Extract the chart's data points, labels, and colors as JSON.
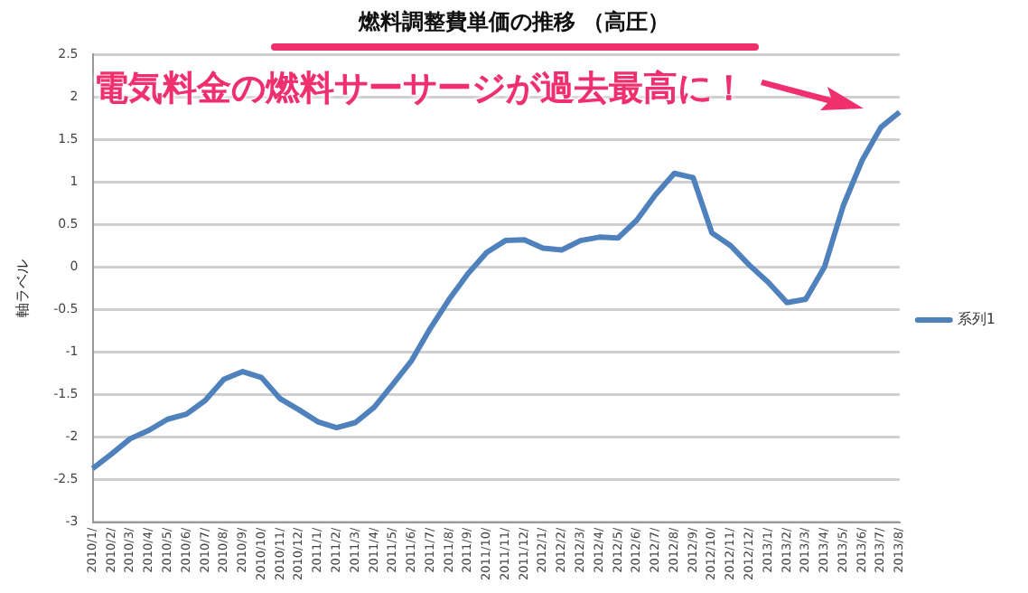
{
  "chart_data": {
    "type": "line",
    "title": "燃料調整費単価の推移 （高圧）",
    "ylabel": "軸ラベル",
    "annotations": [
      "電気料金の燃料サーサージが過去最高に！"
    ],
    "categories": [
      "2010/1/",
      "2010/2/",
      "2010/3/",
      "2010/4/",
      "2010/5/",
      "2010/6/",
      "2010/7/",
      "2010/8/",
      "2010/9/",
      "2010/10/",
      "2010/11/",
      "2010/12/",
      "2011/1/",
      "2011/2/",
      "2011/3/",
      "2011/4/",
      "2011/5/",
      "2011/6/",
      "2011/7/",
      "2011/8/",
      "2011/9/",
      "2011/10/",
      "2011/11/",
      "2011/12/",
      "2012/1/",
      "2012/2/",
      "2012/3/",
      "2012/4/",
      "2012/5/",
      "2012/6/",
      "2012/7/",
      "2012/8/",
      "2012/9/",
      "2012/10/",
      "2012/11/",
      "2012/12/",
      "2013/1/",
      "2013/2/",
      "2013/3/",
      "2013/4/",
      "2013/5/",
      "2013/6/",
      "2013/7/",
      "2013/8/"
    ],
    "series": [
      {
        "name": "系列1",
        "color": "#4f81bd",
        "values": [
          -2.37,
          -2.2,
          -2.02,
          -1.92,
          -1.79,
          -1.73,
          -1.57,
          -1.32,
          -1.23,
          -1.3,
          -1.55,
          -1.68,
          -1.82,
          -1.89,
          -1.83,
          -1.65,
          -1.38,
          -1.1,
          -0.72,
          -0.38,
          -0.08,
          0.17,
          0.31,
          0.32,
          0.22,
          0.2,
          0.31,
          0.35,
          0.34,
          0.55,
          0.85,
          1.1,
          1.05,
          0.4,
          0.25,
          0.02,
          -0.18,
          -0.42,
          -0.38,
          0.0,
          0.72,
          1.25,
          1.64,
          1.82
        ]
      }
    ],
    "ylim": [
      -3,
      2.5
    ],
    "yticks": [
      -3,
      -2.5,
      -2,
      -1.5,
      -1,
      -0.5,
      0,
      0.5,
      1,
      1.5,
      2,
      2.5
    ],
    "grid": "y",
    "legend": "right",
    "marker": "none",
    "line_style": "solid"
  }
}
